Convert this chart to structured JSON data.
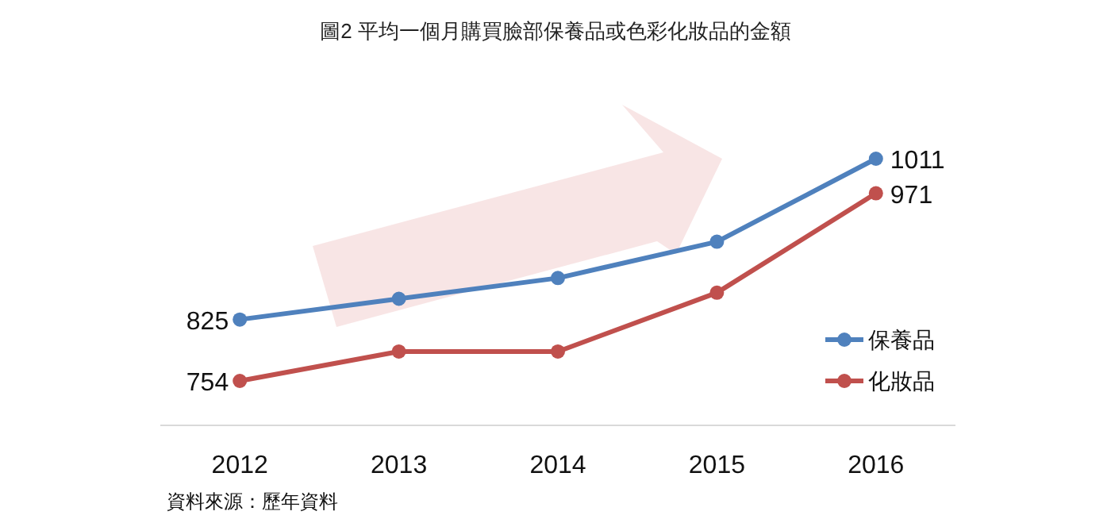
{
  "chart_data": {
    "type": "line",
    "title": "圖2  平均一個月購買臉部保養品或色彩化妝品的金額",
    "categories": [
      "2012",
      "2013",
      "2014",
      "2015",
      "2016"
    ],
    "series": [
      {
        "name": "保養品",
        "color": "#4f81bd",
        "values": [
          825,
          849,
          873,
          915,
          1011
        ],
        "value_labels": [
          "825",
          null,
          null,
          null,
          "1011"
        ]
      },
      {
        "name": "化妝品",
        "color": "#c0504d",
        "values": [
          754,
          788,
          788,
          856,
          971
        ],
        "value_labels": [
          "754",
          null,
          null,
          null,
          "971"
        ]
      }
    ],
    "tick_labels": "x",
    "marker": "circle",
    "legend": "right",
    "annotations": [
      "資料來源：歷年資料"
    ]
  }
}
